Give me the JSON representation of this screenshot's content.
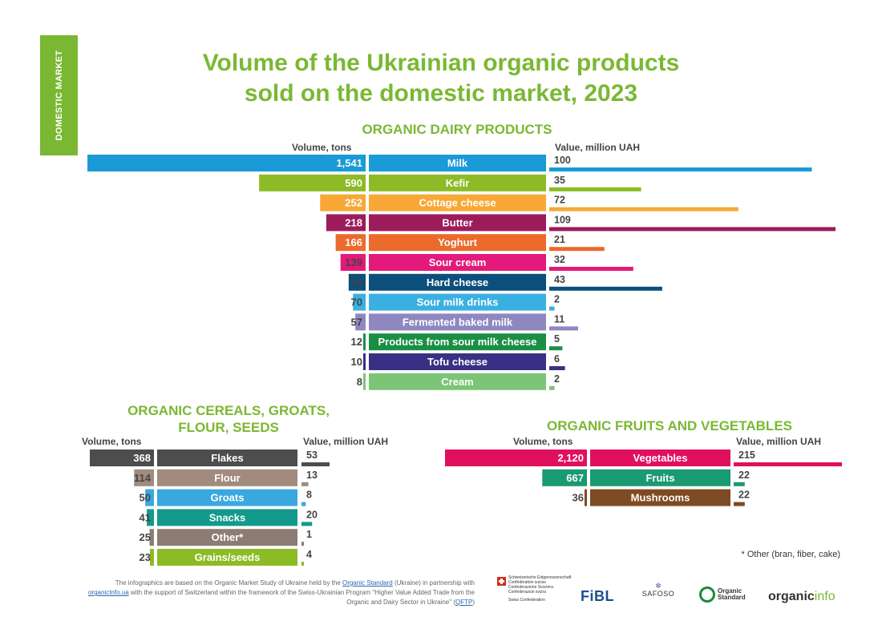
{
  "side_tab": "DOMESTIC MARKET",
  "title_line1": "Volume of the Ukrainian organic products",
  "title_line2": "sold on the domestic market, 2023",
  "footnote": "* Other (bran, fiber, cake)",
  "credits": {
    "text1": "The infographics are based on the Organic Market Study of Ukraine held by the ",
    "link1": "Organic Standard",
    "text2": " (Ukraine) in partnership with",
    "link2": "organicInfo.ua",
    "text3": " with the support of Switzerland within the framework of the Swiss-Ukrainian Program \"Higher Value Added Trade from the Organic and Dairy Sector in Ukraine\" (",
    "link3": "QFTP",
    "text4": ")"
  },
  "logos": {
    "swiss_lines": [
      "Schweizerische Eidgenossenschaft",
      "Confédération suisse",
      "Confederazione Svizzera",
      "Confederaziun svizra"
    ],
    "swiss_caption": "Swiss Confederation",
    "fibl": "FiBL",
    "safoso": "SAFOSO",
    "organic_standard_1": "Organic",
    "organic_standard_2": "Standard",
    "organicinfo_a": "organic",
    "organicinfo_b": "info"
  },
  "colors": {
    "title_green": "#7ab833",
    "text": "#444444"
  },
  "chart_data": [
    {
      "type": "bar",
      "title": "ORGANIC DAIRY PRODUCTS",
      "left_label": "Volume, tons",
      "right_label": "Value, million UAH",
      "categories": [
        "Milk",
        "Kefir",
        "Cottage cheese",
        "Butter",
        "Yoghurt",
        "Sour cream",
        "Hard cheese",
        "Sour milk drinks",
        "Fermented baked milk",
        "Products from sour milk cheese",
        "Tofu cheese",
        "Cream"
      ],
      "series": [
        {
          "name": "Volume, tons",
          "values": [
            1541,
            590,
            252,
            218,
            166,
            139,
            94,
            70,
            57,
            12,
            10,
            8
          ],
          "labels": [
            "1,541",
            "590",
            "252",
            "218",
            "166",
            "139",
            "94",
            "70",
            "57",
            "12",
            "10",
            "8"
          ]
        },
        {
          "name": "Value, million UAH",
          "values": [
            100,
            35,
            72,
            109,
            21,
            32,
            43,
            2,
            11,
            5,
            6,
            2
          ],
          "labels": [
            "100",
            "35",
            "72",
            "109",
            "21",
            "32",
            "43",
            "2",
            "11",
            "5",
            "6",
            "2"
          ]
        }
      ],
      "colors": [
        "#1a9ad7",
        "#8dbb25",
        "#f7a836",
        "#9c1b5b",
        "#ec6a2c",
        "#e3197b",
        "#0c4f7d",
        "#3ab0e2",
        "#9087c1",
        "#1a8f44",
        "#3a2f85",
        "#7cc576"
      ]
    },
    {
      "type": "bar",
      "title": "ORGANIC CEREALS, GROATS, FLOUR, SEEDS",
      "left_label": "Volume, tons",
      "right_label": "Value, million UAH",
      "categories": [
        "Flakes",
        "Flour",
        "Groats",
        "Snacks",
        "Other*",
        "Grains/seeds"
      ],
      "series": [
        {
          "name": "Volume, tons",
          "values": [
            368,
            114,
            50,
            41,
            25,
            23
          ],
          "labels": [
            "368",
            "114",
            "50",
            "41",
            "25",
            "23"
          ]
        },
        {
          "name": "Value, million UAH",
          "values": [
            53,
            13,
            8,
            20,
            1,
            4
          ],
          "labels": [
            "53",
            "13",
            "8",
            "20",
            "1",
            "4"
          ]
        }
      ],
      "colors": [
        "#4d4d4d",
        "#a08b7d",
        "#3aa8df",
        "#129a8a",
        "#8c7c74",
        "#8dbb25"
      ]
    },
    {
      "type": "bar",
      "title": "ORGANIC FRUITS AND VEGETABLES",
      "left_label": "Volume, tons",
      "right_label": "Value, million UAH",
      "categories": [
        "Vegetables",
        "Fruits",
        "Mushrooms"
      ],
      "series": [
        {
          "name": "Volume, tons",
          "values": [
            2120,
            667,
            36
          ],
          "labels": [
            "2,120",
            "667",
            "36"
          ]
        },
        {
          "name": "Value, million UAH",
          "values": [
            215,
            22,
            22
          ],
          "labels": [
            "215",
            "22",
            "22"
          ]
        }
      ],
      "colors": [
        "#e0105e",
        "#1a9a70",
        "#7d4a22"
      ]
    }
  ]
}
